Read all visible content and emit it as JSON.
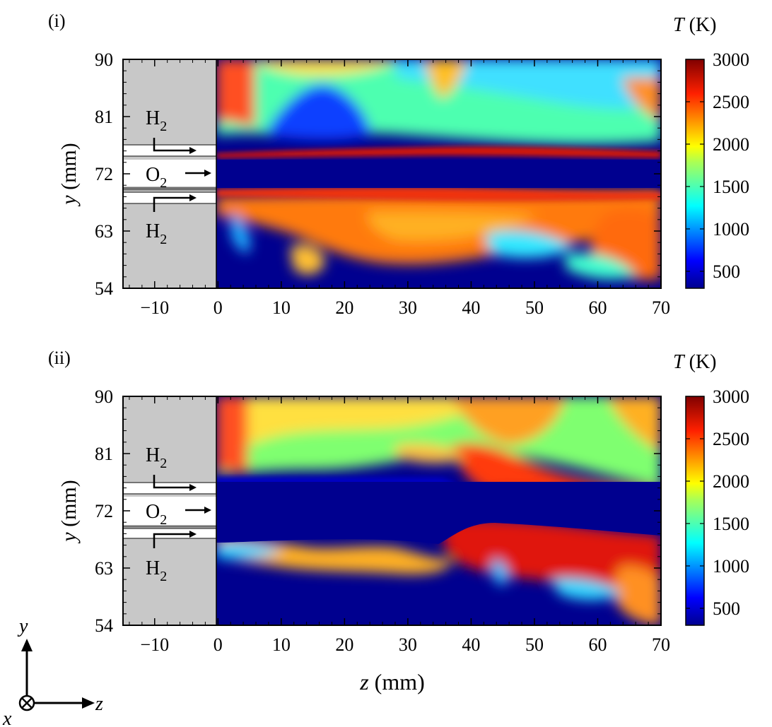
{
  "chart_data": [
    {
      "type": "heatmap",
      "panel_label": "(i)",
      "xlabel_var": "z",
      "xlabel_unit": " (mm)",
      "ylabel_var": "y",
      "ylabel_unit": " (mm)",
      "xlim": [
        -15,
        70
      ],
      "ylim": [
        54,
        90
      ],
      "xticks": [
        -10,
        0,
        10,
        20,
        30,
        40,
        50,
        60,
        70
      ],
      "yticks": [
        54,
        63,
        72,
        81,
        90
      ],
      "injector": {
        "z_start": -15,
        "z_end": 0,
        "o2_y": [
          70.1,
          73.9
        ],
        "h2_upper_y": [
          74.6,
          75.8
        ],
        "h2_lower_y": [
          68.2,
          69.4
        ]
      },
      "labels": {
        "h2_upper": "H",
        "h2_upper_sub": "2",
        "o2": "O",
        "o2_sub": "2",
        "h2_lower": "H",
        "h2_lower_sub": "2"
      },
      "colorbar": {
        "title_var": "T",
        "title_unit": " (K)",
        "min": 300,
        "max": 3000,
        "ticks": [
          500,
          1000,
          1500,
          2000,
          2500,
          3000
        ],
        "tick_labels": [
          "500",
          "1000",
          "1500",
          "2000",
          "2500",
          "3000"
        ]
      },
      "field": "temperature"
    },
    {
      "type": "heatmap",
      "panel_label": "(ii)",
      "xlabel_var": "z",
      "xlabel_unit": " (mm)",
      "ylabel_var": "y",
      "ylabel_unit": " (mm)",
      "xlim": [
        -15,
        70
      ],
      "ylim": [
        54,
        90
      ],
      "xticks": [
        -10,
        0,
        10,
        20,
        30,
        40,
        50,
        60,
        70
      ],
      "yticks": [
        54,
        63,
        72,
        81,
        90
      ],
      "injector": {
        "z_start": -15,
        "z_end": 0,
        "o2_y": [
          70.1,
          73.9
        ],
        "h2_upper_y": [
          74.6,
          75.8
        ],
        "h2_lower_y": [
          68.2,
          69.4
        ]
      },
      "labels": {
        "h2_upper": "H",
        "h2_upper_sub": "2",
        "o2": "O",
        "o2_sub": "2",
        "h2_lower": "H",
        "h2_lower_sub": "2"
      },
      "colorbar": {
        "title_var": "T",
        "title_unit": " (K)",
        "min": 300,
        "max": 3000,
        "ticks": [
          500,
          1000,
          1500,
          2000,
          2500,
          3000
        ],
        "tick_labels": [
          "500",
          "1000",
          "1500",
          "2000",
          "2500",
          "3000"
        ]
      },
      "field": "temperature"
    }
  ],
  "axes_triad": {
    "y": "y",
    "z": "z",
    "x": "x"
  },
  "colors": {
    "injector_fill": "#c8c8c8",
    "stream_fill": "#ffffff",
    "frame": "#000000"
  }
}
